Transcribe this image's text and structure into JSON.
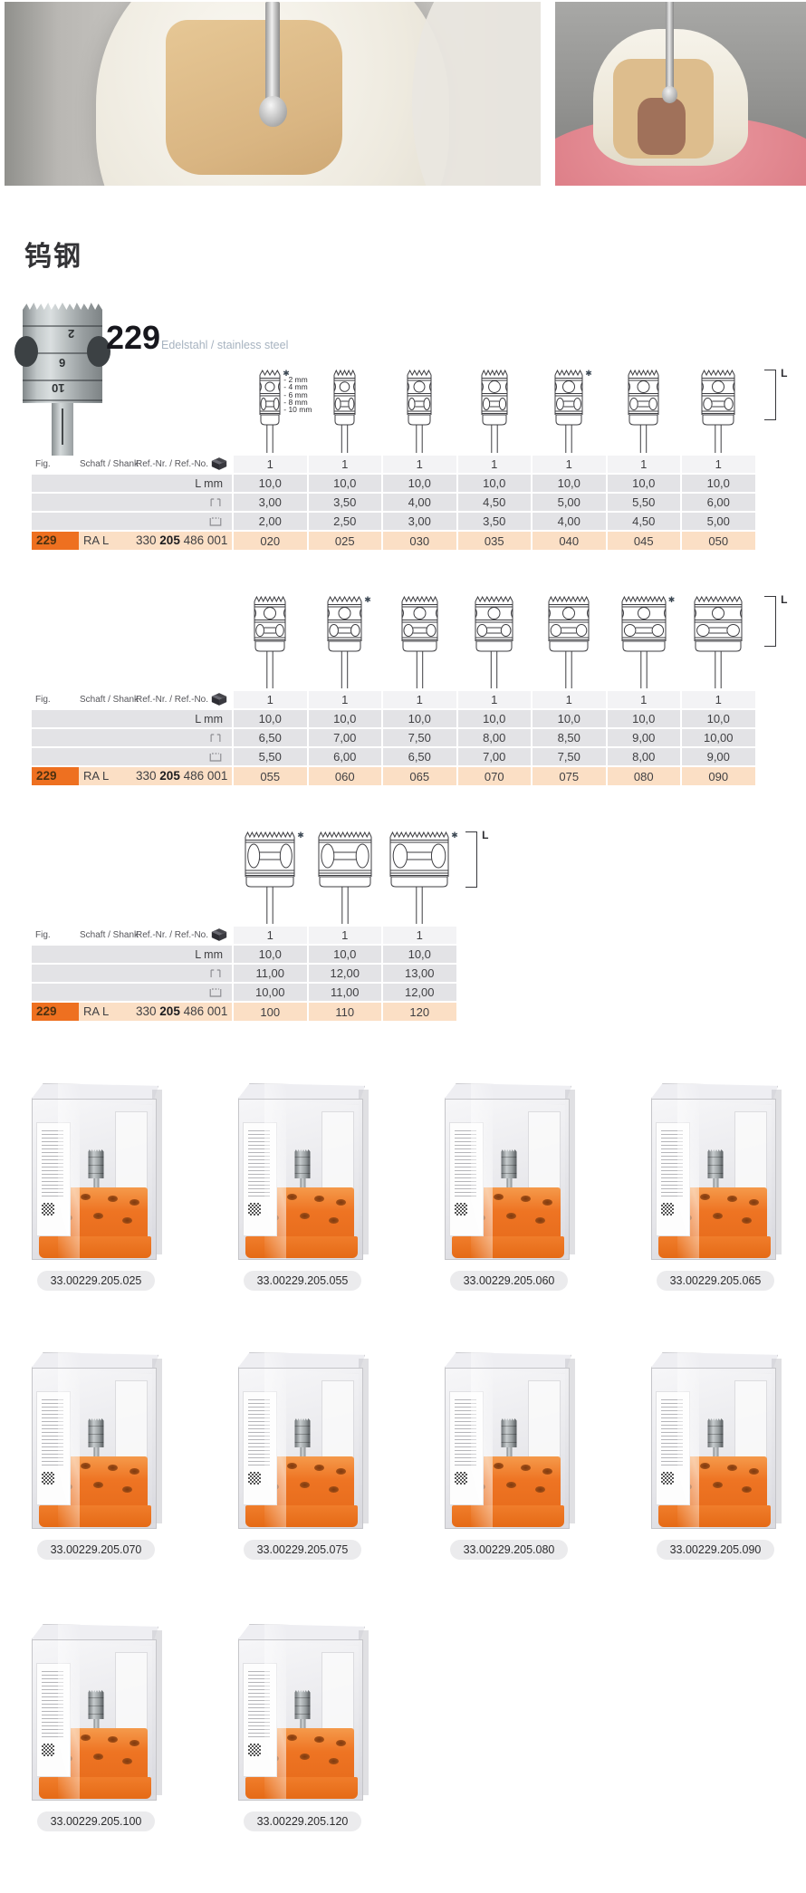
{
  "page": {
    "heading": "钨钢"
  },
  "product": {
    "figure": "229",
    "material_label": "Edelstahl / stainless steel",
    "shaft_markings": [
      "2",
      "6",
      "10"
    ]
  },
  "table_header": {
    "fig": "Fig.",
    "shank": "Schaft / Shank",
    "ref": "Ref.-Nr. / Ref.-No."
  },
  "legend": {
    "asterisk": "✱",
    "length_label": "L"
  },
  "tables": [
    {
      "counts": [
        "1",
        "1",
        "1",
        "1",
        "1",
        "1",
        "1"
      ],
      "rows": [
        {
          "label": "L mm",
          "icon": "length-icon",
          "values": [
            "10,0",
            "10,0",
            "10,0",
            "10,0",
            "10,0",
            "10,0",
            "10,0"
          ]
        },
        {
          "label": "",
          "icon": "head-length-icon",
          "values": [
            "3,00",
            "3,50",
            "4,00",
            "4,50",
            "5,00",
            "5,50",
            "6,00"
          ]
        },
        {
          "label": "",
          "icon": "head-diameter-icon",
          "values": [
            "2,00",
            "2,50",
            "3,00",
            "3,50",
            "4,00",
            "4,50",
            "5,00"
          ]
        }
      ],
      "ref_row": {
        "fig": "229",
        "shank": "RA L",
        "ref_parts": [
          "330",
          "205",
          "486 001"
        ],
        "sizes": [
          "020",
          "025",
          "030",
          "035",
          "040",
          "045",
          "050"
        ]
      },
      "diagram": {
        "widths": [
          22,
          23,
          26,
          28,
          30,
          33,
          36
        ],
        "asterisk_cols": [
          0,
          4
        ],
        "depth_labels": [
          "2 mm",
          "4 mm",
          "6 mm",
          "8 mm",
          "10 mm"
        ],
        "bracket_label": "L",
        "large": false
      }
    },
    {
      "counts": [
        "1",
        "1",
        "1",
        "1",
        "1",
        "1",
        "1"
      ],
      "rows": [
        {
          "label": "L mm",
          "icon": "length-icon",
          "values": [
            "10,0",
            "10,0",
            "10,0",
            "10,0",
            "10,0",
            "10,0",
            "10,0"
          ]
        },
        {
          "label": "",
          "icon": "head-length-icon",
          "values": [
            "6,50",
            "7,00",
            "7,50",
            "8,00",
            "8,50",
            "9,00",
            "10,00"
          ]
        },
        {
          "label": "",
          "icon": "head-diameter-icon",
          "values": [
            "5,50",
            "6,00",
            "6,50",
            "7,00",
            "7,50",
            "8,00",
            "9,00"
          ]
        }
      ],
      "ref_row": {
        "fig": "229",
        "shank": "RA L",
        "ref_parts": [
          "330",
          "205",
          "486 001"
        ],
        "sizes": [
          "055",
          "060",
          "065",
          "070",
          "075",
          "080",
          "090"
        ]
      },
      "diagram": {
        "widths": [
          34,
          37,
          39,
          41,
          44,
          48,
          52
        ],
        "asterisk_cols": [
          1,
          5
        ],
        "bracket_label": "L",
        "large": false
      }
    },
    {
      "counts": [
        "1",
        "1",
        "1"
      ],
      "rows": [
        {
          "label": "L mm",
          "icon": "length-icon",
          "values": [
            "10,0",
            "10,0",
            "10,0"
          ]
        },
        {
          "label": "",
          "icon": "head-length-icon",
          "values": [
            "11,00",
            "12,00",
            "13,00"
          ]
        },
        {
          "label": "",
          "icon": "head-diameter-icon",
          "values": [
            "10,00",
            "11,00",
            "12,00"
          ]
        }
      ],
      "ref_row": {
        "fig": "229",
        "shank": "RA L",
        "ref_parts": [
          "330",
          "205",
          "486 001"
        ],
        "sizes": [
          "100",
          "110",
          "120"
        ]
      },
      "diagram": {
        "widths": [
          54,
          58,
          64
        ],
        "asterisk_cols": [
          0,
          2
        ],
        "bracket_label": "L",
        "large": true
      }
    }
  ],
  "boxes": [
    "33.00229.205.025",
    "33.00229.205.055",
    "33.00229.205.060",
    "33.00229.205.065",
    "33.00229.205.070",
    "33.00229.205.075",
    "33.00229.205.080",
    "33.00229.205.090",
    "33.00229.205.100",
    "33.00229.205.120"
  ],
  "theme": {
    "accent_orange": "#ee7020",
    "row_peach": "#fbdfc5",
    "row_gray": "#e3e3e6",
    "count_row": "#f3f3f5"
  }
}
